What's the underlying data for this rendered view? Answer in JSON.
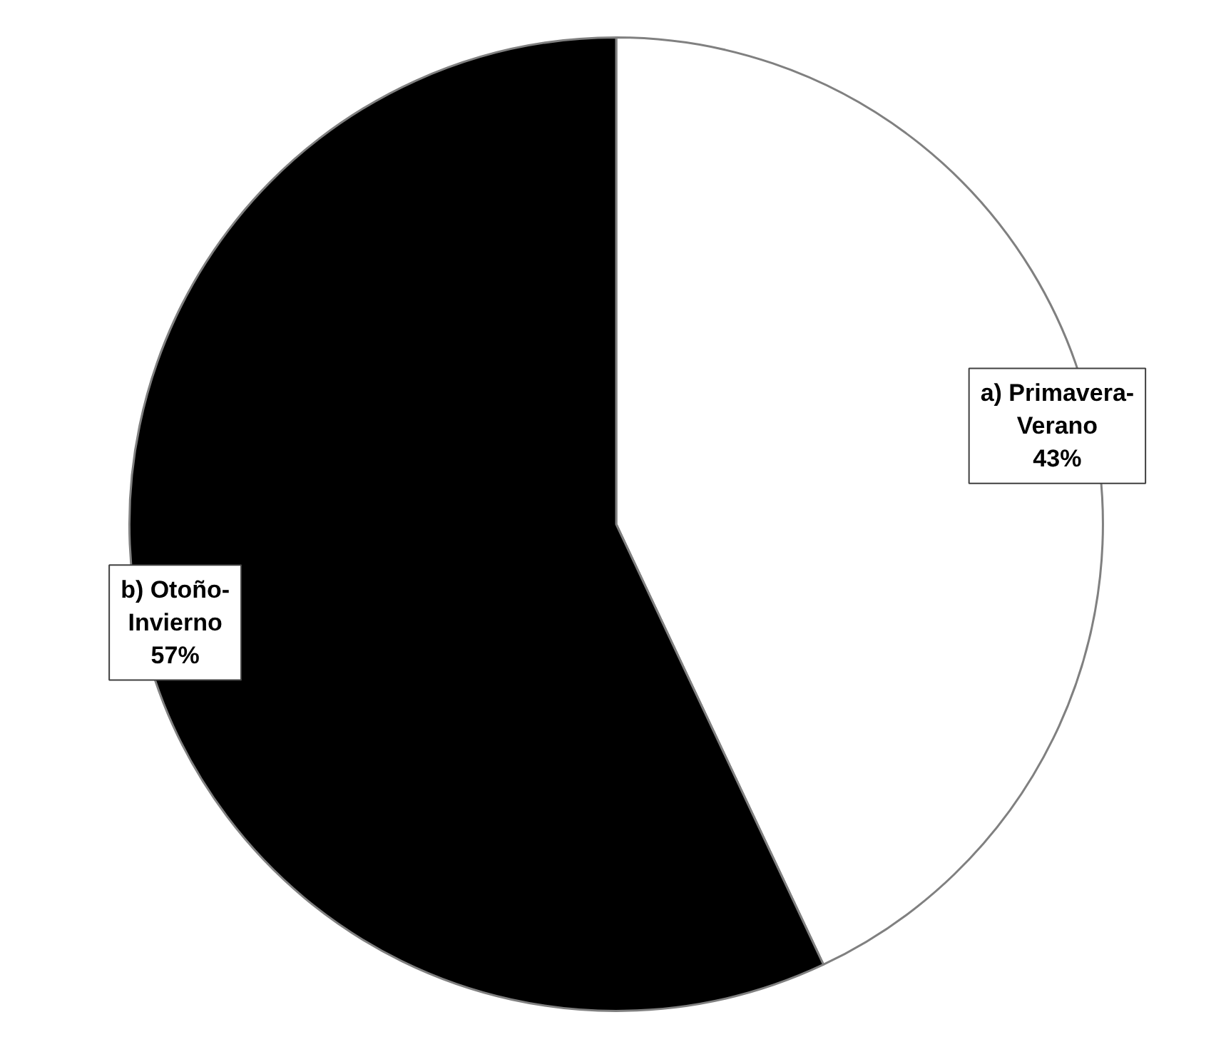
{
  "chart_data": {
    "type": "pie",
    "categories": [
      "a) Primavera-Verano",
      "b) Otoño-Invierno"
    ],
    "values": [
      43,
      57
    ],
    "colors": [
      "#ffffff",
      "#000000"
    ],
    "value_labels": [
      "43%",
      "57%"
    ]
  }
}
